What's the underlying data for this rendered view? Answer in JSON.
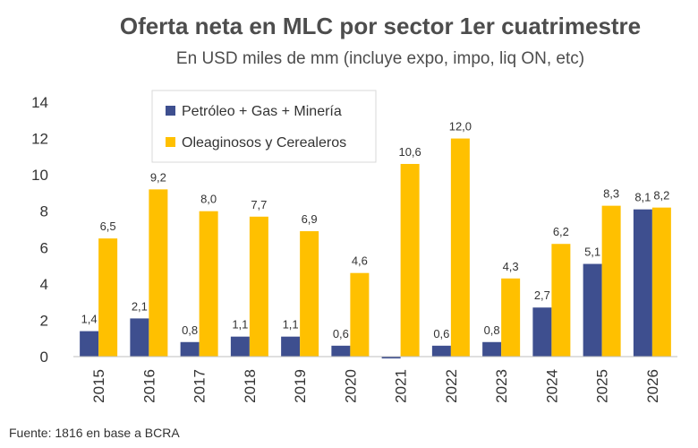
{
  "chart_data": {
    "type": "bar",
    "title": "Oferta neta en MLC por sector 1er cuatrimestre",
    "subtitle": "En USD miles de mm (incluye expo, impo, liq ON, etc)",
    "categories": [
      "2015",
      "2016",
      "2017",
      "2018",
      "2019",
      "2020",
      "2021",
      "2022",
      "2023",
      "2024",
      "2025",
      "2026"
    ],
    "series": [
      {
        "name": "Petróleo + Gas + Minería",
        "color": "#3e4f8f",
        "values": [
          1.4,
          2.1,
          0.8,
          1.1,
          1.1,
          0.6,
          -0.1,
          0.6,
          0.8,
          2.7,
          5.1,
          8.1
        ],
        "labels": [
          "1,4",
          "2,1",
          "0,8",
          "1,1",
          "1,1",
          "0,6",
          "",
          "0,6",
          "0,8",
          "2,7",
          "5,1",
          "8,1"
        ]
      },
      {
        "name": "Oleaginosos y Cerealeros",
        "color": "#ffc000",
        "values": [
          6.5,
          9.2,
          8.0,
          7.7,
          6.9,
          4.6,
          10.6,
          12.0,
          4.3,
          6.2,
          8.3,
          8.2
        ],
        "labels": [
          "6,5",
          "9,2",
          "8,0",
          "7,7",
          "6,9",
          "4,6",
          "10,6",
          "12,0",
          "4,3",
          "6,2",
          "8,3",
          "8,2"
        ]
      }
    ],
    "ylim": [
      0,
      14
    ],
    "yticks": [
      "0",
      "2",
      "4",
      "6",
      "8",
      "10",
      "12",
      "14"
    ],
    "yticks_values": [
      0,
      2,
      4,
      6,
      8,
      10,
      12,
      14
    ],
    "grid": false,
    "legend": "top-left",
    "source": "Fuente: 1816 en base a BCRA"
  }
}
